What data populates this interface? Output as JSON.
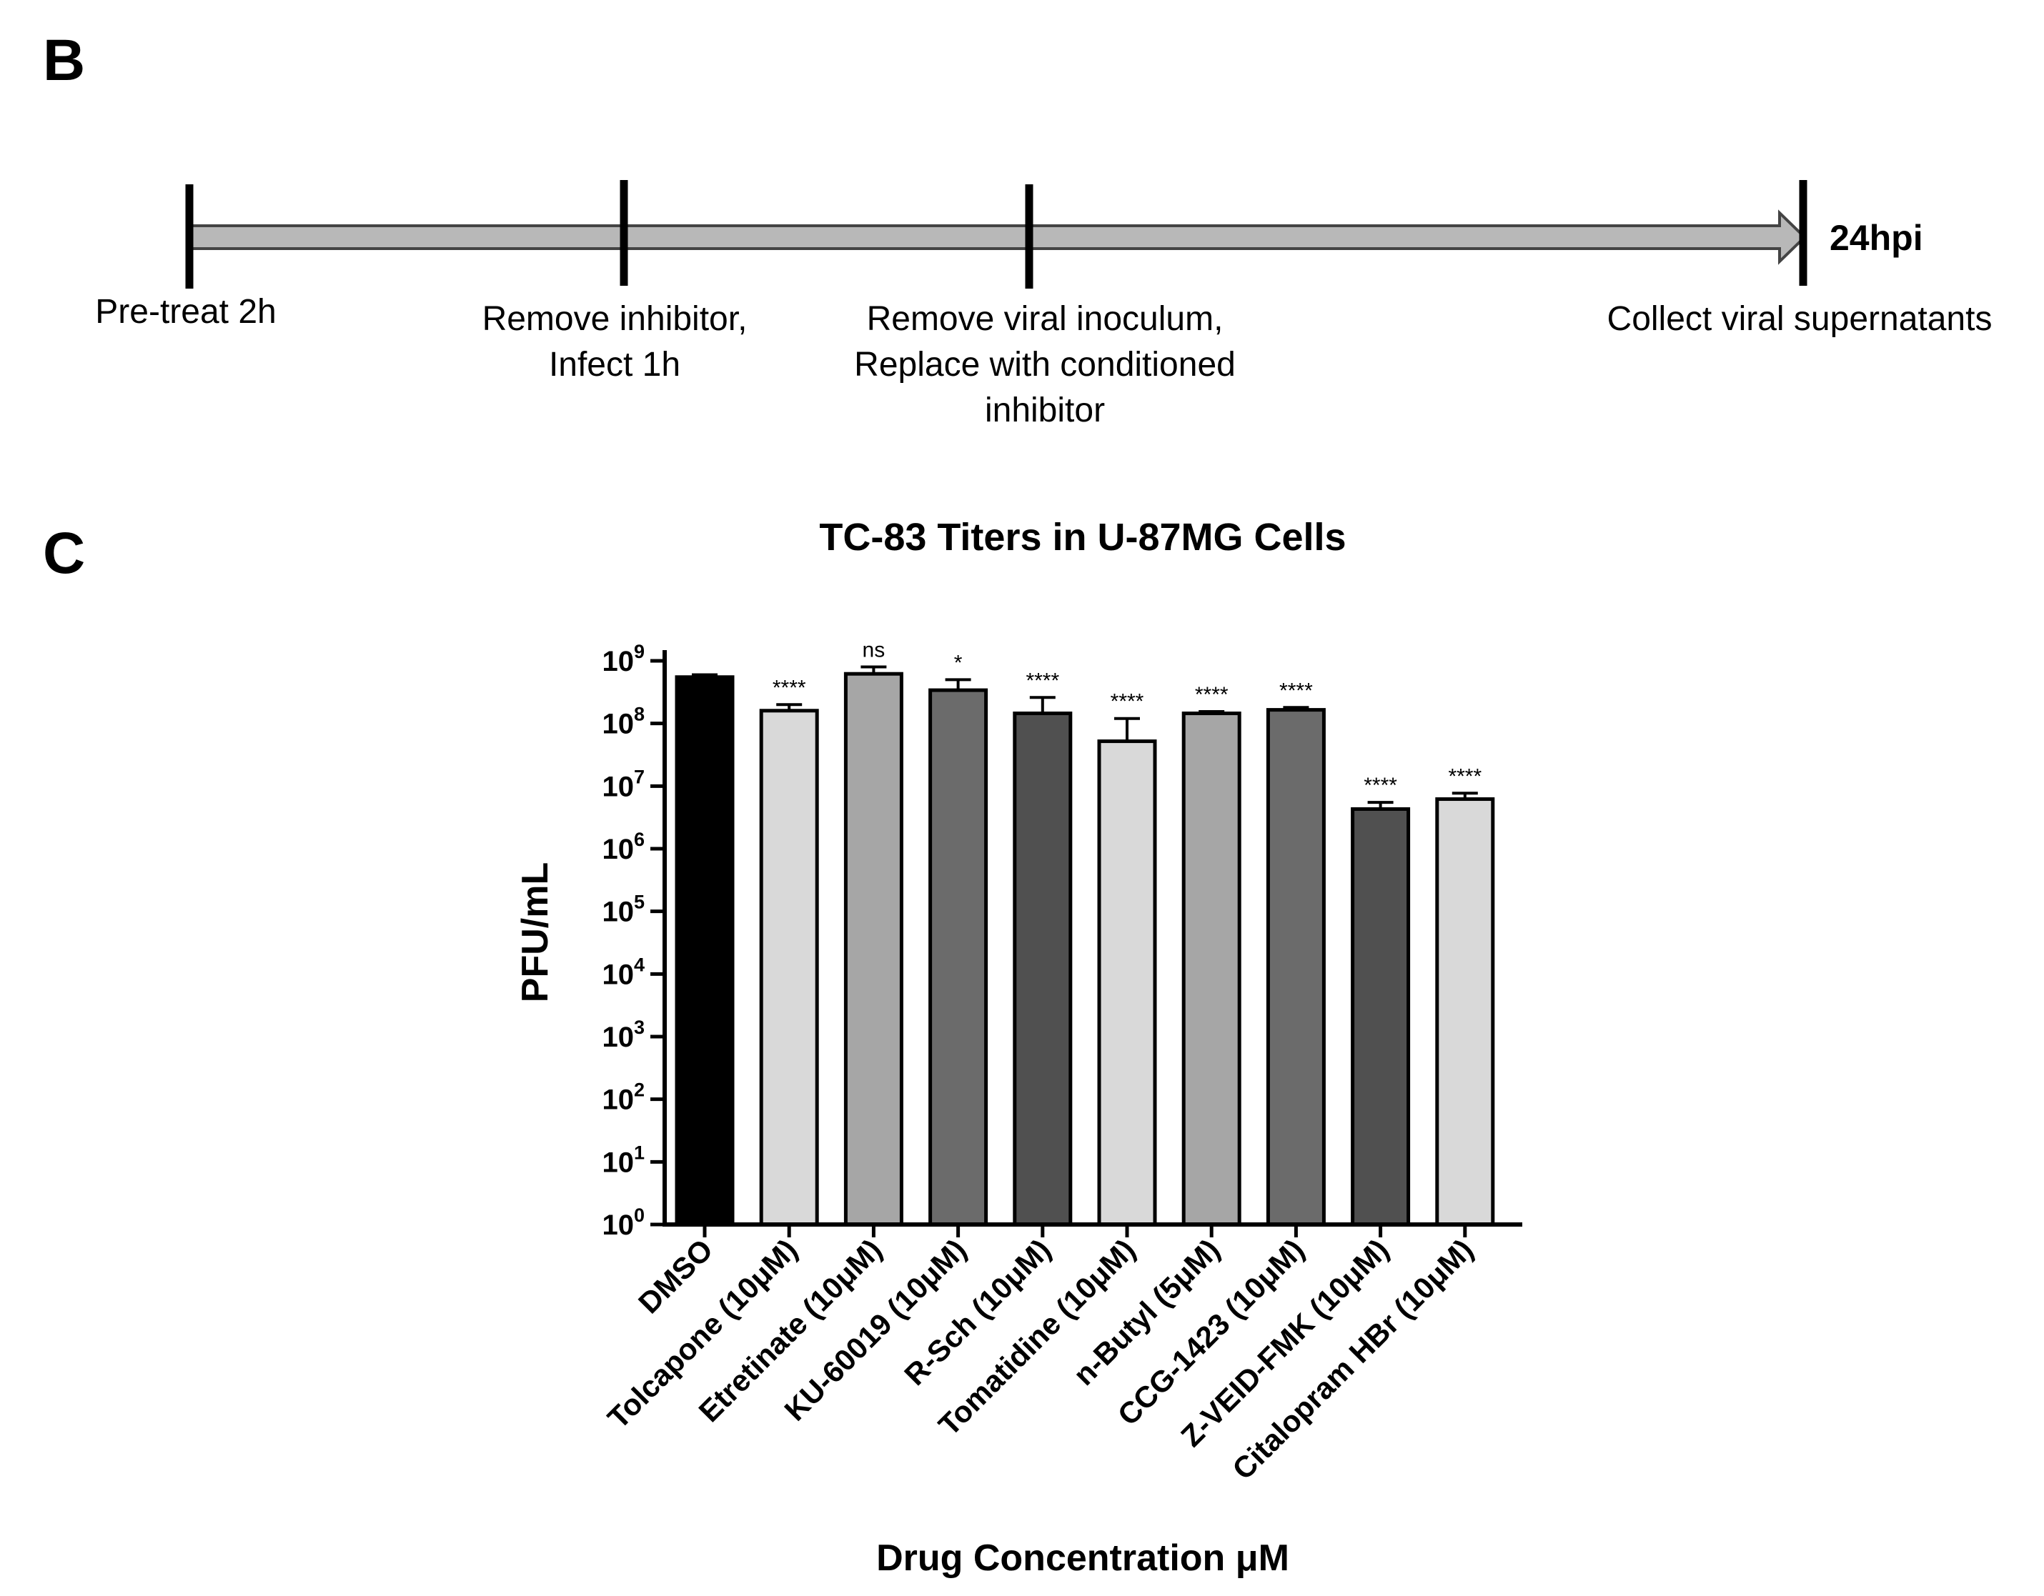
{
  "panels": {
    "b": "B",
    "c": "C"
  },
  "timeline": {
    "steps": [
      {
        "lines": [
          "Pre-treat 2h"
        ]
      },
      {
        "lines": [
          "Remove inhibitor,",
          "Infect 1h"
        ]
      },
      {
        "lines": [
          "Remove viral inoculum,",
          "Replace with conditioned",
          "inhibitor"
        ]
      },
      {
        "lines": [
          "Collect viral supernatants"
        ]
      }
    ],
    "end_label": "24hpi",
    "arrow_color": "#b8b8b8"
  },
  "chart_data": {
    "type": "bar",
    "title": "TC-83 Titers in U-87MG Cells",
    "xlabel": "Drug Concentration μM",
    "ylabel": "PFU/mL",
    "yscale": "log",
    "ylim": [
      1,
      1000000000
    ],
    "ytick_base": "10",
    "ytick_exponents": [
      "0",
      "1",
      "2",
      "3",
      "4",
      "5",
      "6",
      "7",
      "8",
      "9"
    ],
    "categories": [
      "DMSO",
      "Tolcapone (10μM)",
      "Etretinate (10μM)",
      "KU-60019 (10μM)",
      "R-Sch (10μM)",
      "Tomatidine (10μM)",
      "n-Butyl (5μM)",
      "CCG-1423 (10μM)",
      "Z-VEID-FMK (10μM)",
      "Citalopram HBr (10μM)"
    ],
    "values": [
      550000000,
      160000000,
      620000000,
      340000000,
      145000000,
      52000000,
      145000000,
      165000000,
      4300000,
      6200000
    ],
    "error_upper": [
      600000000,
      200000000,
      800000000,
      500000000,
      260000000,
      120000000,
      155000000,
      180000000,
      5500000,
      7700000
    ],
    "significance": [
      "",
      "****",
      "ns",
      "*",
      "****",
      "****",
      "****",
      "****",
      "****",
      "****"
    ],
    "bar_colors": [
      "#000000",
      "#d9d9d9",
      "#a6a6a6",
      "#6b6b6b",
      "#505050",
      "#d9d9d9",
      "#a6a6a6",
      "#6b6b6b",
      "#505050",
      "#d9d9d9"
    ]
  }
}
